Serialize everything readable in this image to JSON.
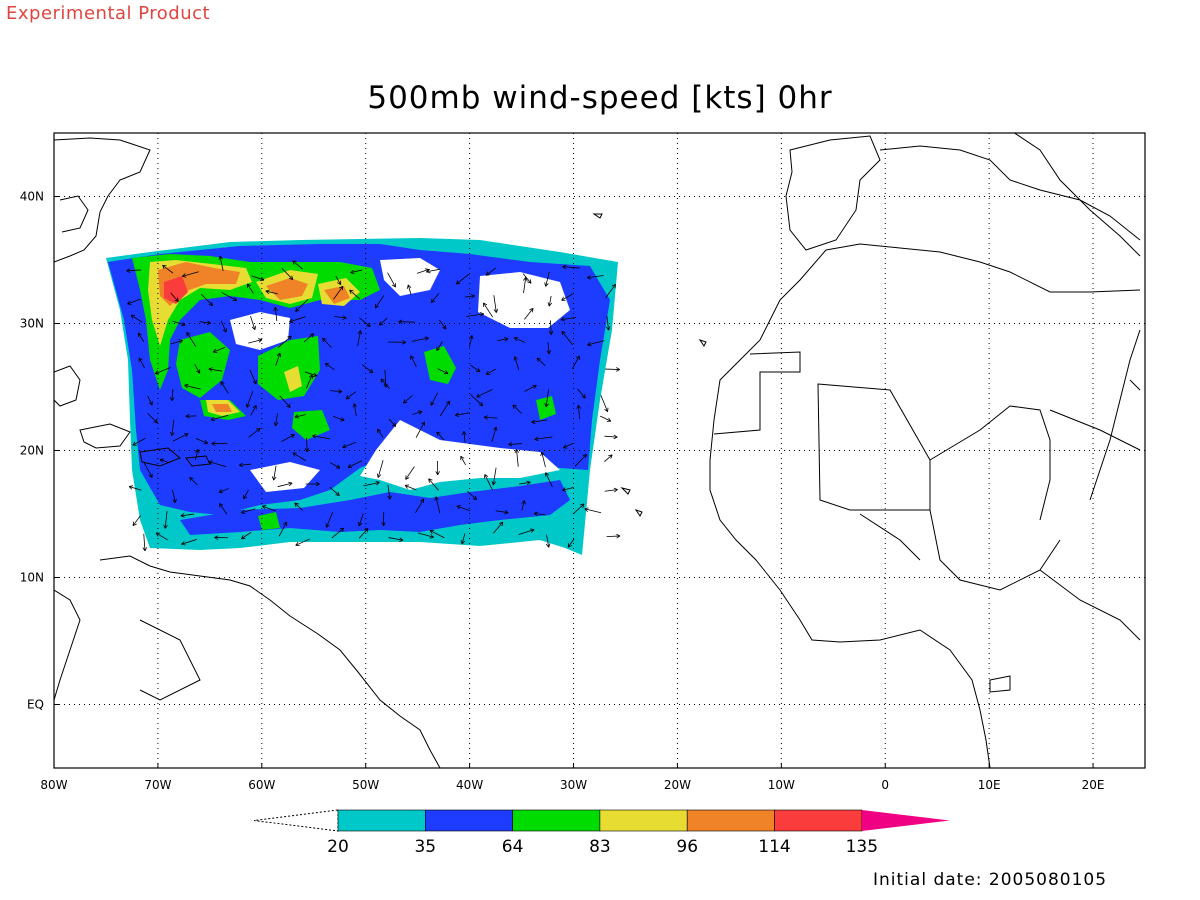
{
  "header": {
    "experimental": "Experimental Product",
    "title": "500mb wind-speed [kts] 0hr"
  },
  "footer": {
    "initial_date": "Initial date: 2005080105"
  },
  "map": {
    "lon_labels": [
      "80W",
      "70W",
      "60W",
      "50W",
      "40W",
      "30W",
      "20W",
      "10W",
      "0",
      "10E",
      "20E"
    ],
    "lat_labels": [
      "40N",
      "30N",
      "20N",
      "10N",
      "EQ"
    ],
    "lon_range": [
      -80,
      25
    ],
    "lat_range": [
      -5,
      45
    ]
  },
  "colorbar": {
    "thresholds": [
      "20",
      "35",
      "64",
      "83",
      "96",
      "114",
      "135"
    ],
    "colors": [
      "#00c8c8",
      "#1e3cff",
      "#00dc00",
      "#e6dc32",
      "#f08228",
      "#fa3c3c",
      "#f00082"
    ]
  }
}
